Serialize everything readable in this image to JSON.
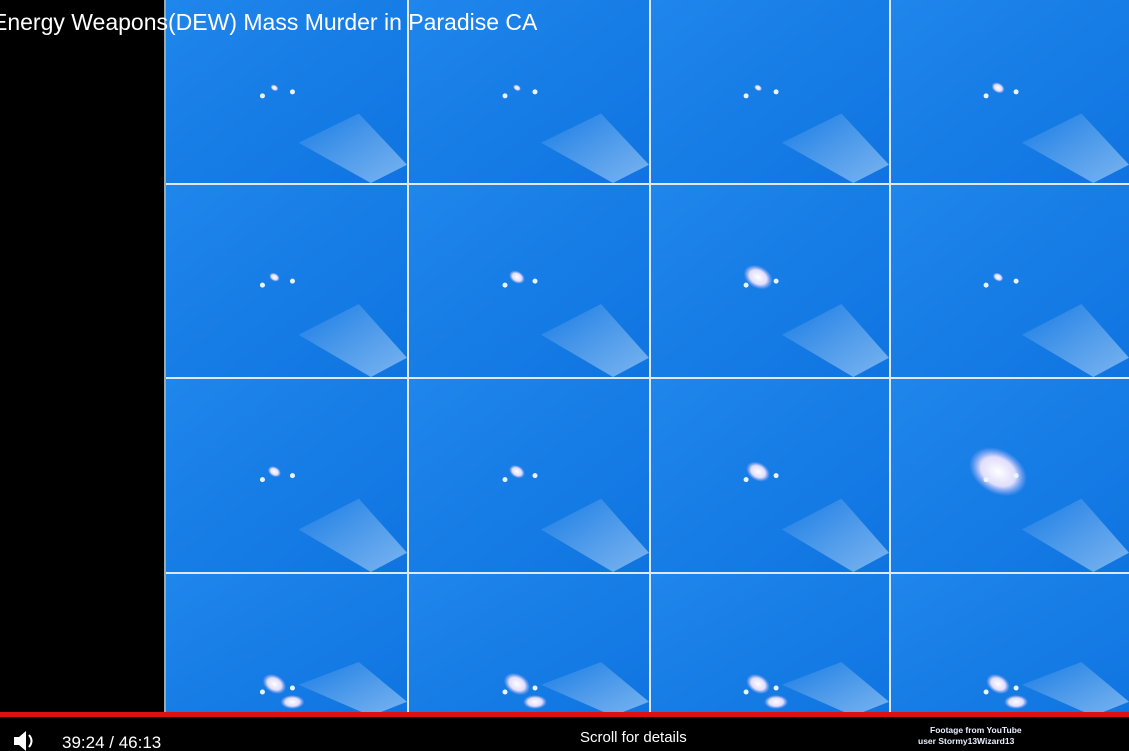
{
  "video": {
    "title": "Energy Weapons(DEW) Mass Murder in Paradise CA",
    "time": "39:24 / 46:13",
    "overlay_text": "Scroll for details",
    "credit": [
      "Footage from YouTube",
      "user Stormy13Wizard13"
    ]
  }
}
